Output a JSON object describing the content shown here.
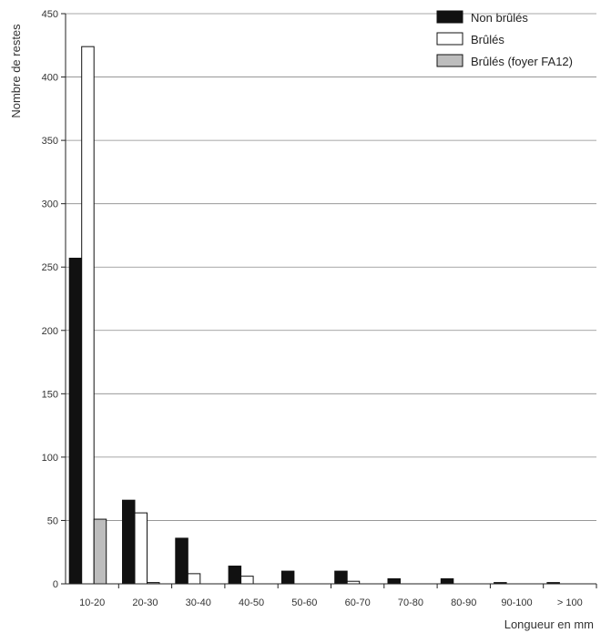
{
  "chart_data": {
    "type": "bar",
    "categories": [
      "10-20",
      "20-30",
      "30-40",
      "40-50",
      "50-60",
      "60-70",
      "70-80",
      "80-90",
      "90-100",
      "> 100"
    ],
    "series": [
      {
        "name": "Non brûlés",
        "color": "#111111",
        "values": [
          257,
          66,
          36,
          14,
          10,
          10,
          4,
          4,
          1,
          1
        ]
      },
      {
        "name": "Brûlés",
        "color": "#ffffff",
        "values": [
          424,
          56,
          8,
          6,
          0,
          2,
          0,
          0,
          0,
          0
        ]
      },
      {
        "name": "Brûlés (foyer FA12)",
        "color": "#bdbdbd",
        "values": [
          51,
          1,
          0,
          0,
          0,
          0,
          0,
          0,
          0,
          0
        ]
      }
    ],
    "xlabel": "Longueur en mm",
    "ylabel": "Nombre de restes",
    "ylim": [
      0,
      450
    ],
    "yticks": [
      0,
      50,
      100,
      150,
      200,
      250,
      300,
      350,
      400,
      450
    ],
    "grid": true,
    "legend_position": "top-right"
  }
}
